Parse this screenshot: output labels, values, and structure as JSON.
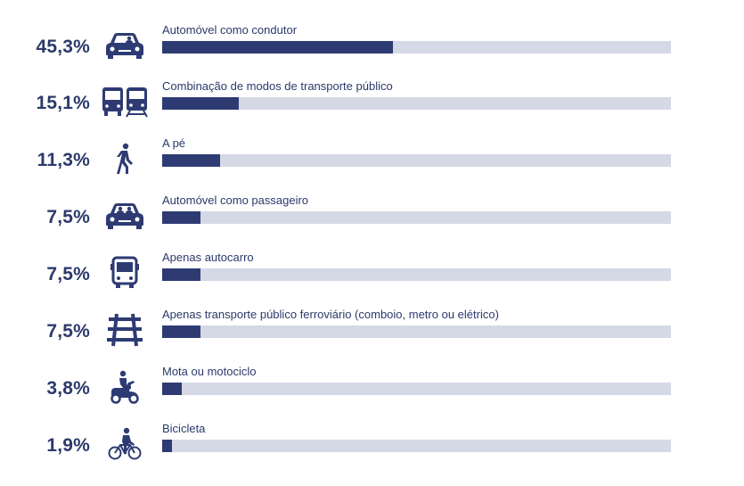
{
  "colors": {
    "bar": "#2e3b73",
    "track": "#d5d9e6",
    "text": "#2b3a6b",
    "icon": "#2e3b73"
  },
  "chart_data": {
    "type": "bar",
    "orientation": "horizontal",
    "categories": [
      "Automóvel como condutor",
      "Combinação de modos de transporte público",
      "A pé",
      "Automóvel como passageiro",
      "Apenas autocarro",
      "Apenas transporte público ferroviário (comboio, metro ou elétrico)",
      "Mota ou motociclo",
      "Bicicleta"
    ],
    "values": [
      45.3,
      15.1,
      11.3,
      7.5,
      7.5,
      7.5,
      3.8,
      1.9
    ],
    "value_labels": [
      "45,3%",
      "15,1%",
      "11,3%",
      "7,5%",
      "7,5%",
      "7,5%",
      "3,8%",
      "1,9%"
    ],
    "icons": [
      "car-driver-icon",
      "bus-train-icon",
      "walking-person-icon",
      "car-passenger-icon",
      "bus-icon",
      "rail-track-icon",
      "scooter-icon",
      "bicycle-icon"
    ],
    "xlim": [
      0,
      100
    ],
    "grid": false,
    "legend": "none"
  }
}
